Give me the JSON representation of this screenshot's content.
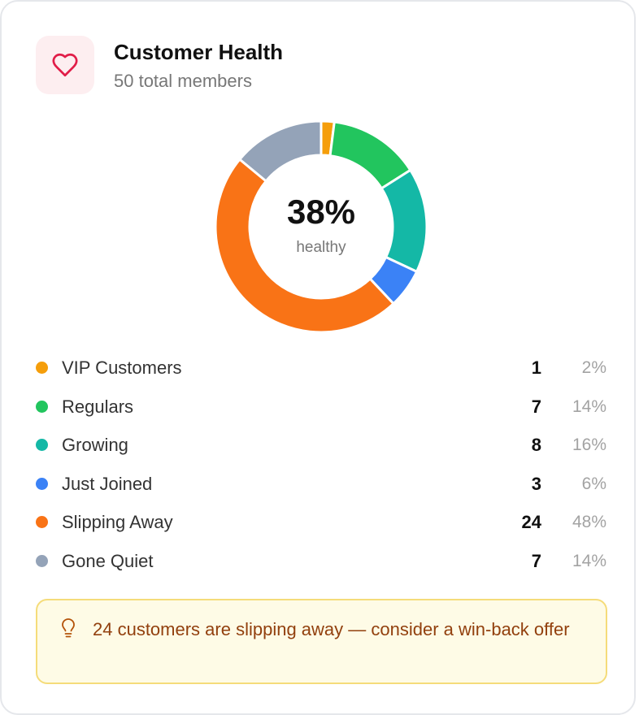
{
  "header": {
    "title": "Customer Health",
    "subtitle": "50 total members",
    "icon": "heart-icon"
  },
  "summary": {
    "value": "38%",
    "label": "healthy"
  },
  "chart_data": {
    "type": "pie",
    "variant": "donut",
    "categories": [
      "VIP Customers",
      "Regulars",
      "Growing",
      "Just Joined",
      "Slipping Away",
      "Gone Quiet"
    ],
    "values": [
      1,
      7,
      8,
      3,
      24,
      7
    ],
    "percentages": [
      "2%",
      "14%",
      "16%",
      "6%",
      "48%",
      "14%"
    ],
    "colors": [
      "#f59e0b",
      "#22c55e",
      "#14b8a6",
      "#3b82f6",
      "#f97316",
      "#94a3b8"
    ],
    "center_text": "38%",
    "center_subtext": "healthy"
  },
  "legend": [
    {
      "label": "VIP Customers",
      "count": "1",
      "percent": "2%",
      "color": "#f59e0b"
    },
    {
      "label": "Regulars",
      "count": "7",
      "percent": "14%",
      "color": "#22c55e"
    },
    {
      "label": "Growing",
      "count": "8",
      "percent": "16%",
      "color": "#14b8a6"
    },
    {
      "label": "Just Joined",
      "count": "3",
      "percent": "6%",
      "color": "#3b82f6"
    },
    {
      "label": "Slipping Away",
      "count": "24",
      "percent": "48%",
      "color": "#f97316"
    },
    {
      "label": "Gone Quiet",
      "count": "7",
      "percent": "14%",
      "color": "#94a3b8"
    }
  ],
  "tip": {
    "icon": "lightbulb-icon",
    "text": "24 customers are slipping away — consider a win-back offer"
  },
  "colors": {
    "heart": "#e11d48",
    "icon_bg": "#fdeef0",
    "tip_bg": "#fefbe6",
    "tip_border": "#f5dc7a",
    "tip_text": "#92400e"
  }
}
